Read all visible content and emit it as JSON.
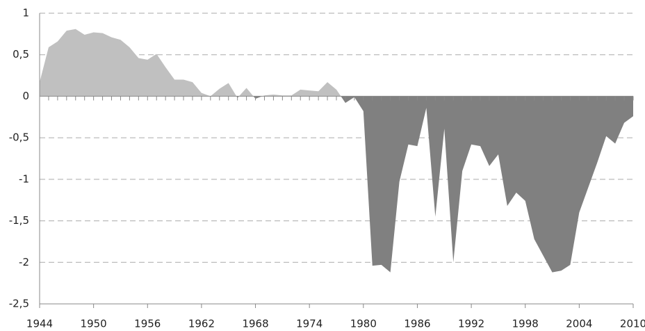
{
  "chart_data": {
    "type": "area",
    "x": [
      1944,
      1945,
      1946,
      1947,
      1948,
      1949,
      1950,
      1951,
      1952,
      1953,
      1954,
      1955,
      1956,
      1957,
      1958,
      1959,
      1960,
      1961,
      1962,
      1963,
      1964,
      1965,
      1966,
      1967,
      1968,
      1969,
      1970,
      1971,
      1972,
      1973,
      1974,
      1975,
      1976,
      1977,
      1978,
      1979,
      1980,
      1981,
      1982,
      1983,
      1984,
      1985,
      1986,
      1987,
      1988,
      1989,
      1990,
      1991,
      1992,
      1993,
      1994,
      1995,
      1996,
      1997,
      1998,
      1999,
      2000,
      2001,
      2002,
      2003,
      2004,
      2005,
      2006,
      2007,
      2008,
      2009,
      2010
    ],
    "values": [
      0.17,
      0.59,
      0.66,
      0.79,
      0.81,
      0.74,
      0.77,
      0.76,
      0.71,
      0.68,
      0.59,
      0.46,
      0.44,
      0.51,
      0.35,
      0.2,
      0.2,
      0.17,
      0.04,
      0,
      0.09,
      0.16,
      -0.02,
      0.1,
      -0.03,
      0.01,
      0.02,
      0.01,
      0.01,
      0.08,
      0.07,
      0.06,
      0.17,
      0.08,
      -0.08,
      -0.01,
      -0.18,
      -2.04,
      -2.03,
      -2.12,
      -1.03,
      -0.58,
      -0.6,
      -0.14,
      -1.45,
      -0.39,
      -2.0,
      -0.9,
      -0.58,
      -0.6,
      -0.84,
      -0.7,
      -1.32,
      -1.16,
      -1.26,
      -1.72,
      -1.92,
      -2.12,
      -2.1,
      -2.03,
      -1.4,
      -1.1,
      -0.8,
      -0.48,
      -0.57,
      -0.32,
      -0.24
    ],
    "positive_color": "#c0c0c0",
    "negative_color": "#808080",
    "xlim": [
      1944,
      2010
    ],
    "xticks": [
      1944,
      1950,
      1956,
      1962,
      1968,
      1974,
      1980,
      1986,
      1992,
      1998,
      2004,
      2010
    ],
    "ylim": [
      -2.5,
      1
    ],
    "yticks": [
      1,
      {
        "value": 0.5,
        "label": "0,5"
      },
      0,
      {
        "value": -0.5,
        "label": "-0,5"
      },
      -1,
      {
        "value": -1.5,
        "label": "-1,5"
      },
      -2,
      {
        "value": -2.5,
        "label": "-2,5"
      }
    ],
    "grid": true
  }
}
